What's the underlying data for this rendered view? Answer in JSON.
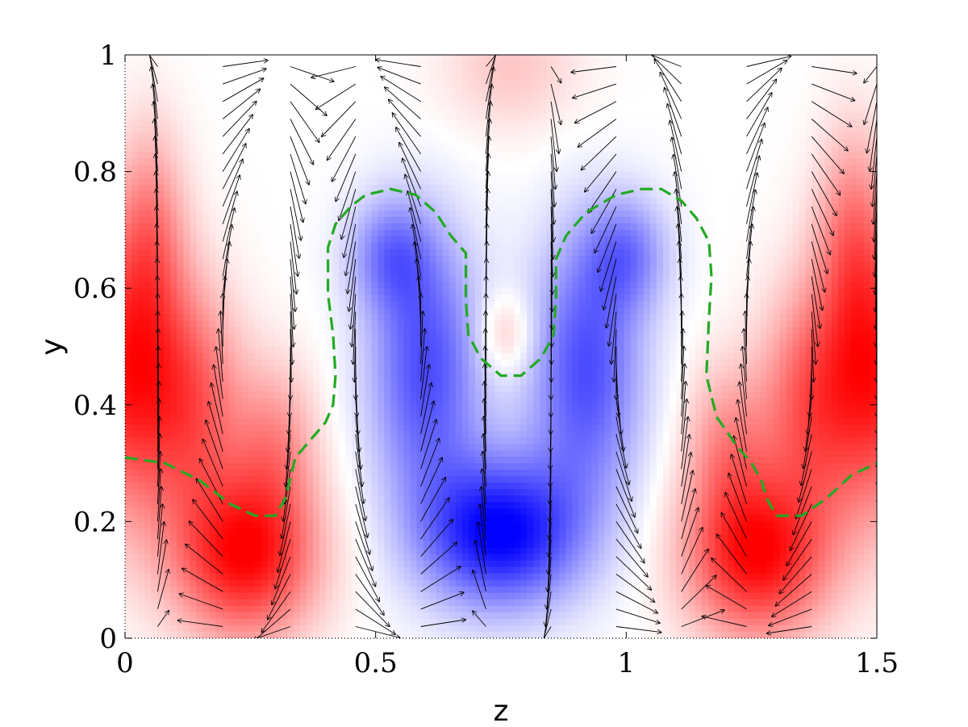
{
  "chart_data": {
    "type": "heatmap",
    "title": "",
    "xlabel": "z",
    "ylabel": "y",
    "xlim": [
      0,
      1.5
    ],
    "ylim": [
      0,
      1
    ],
    "xticks": [
      {
        "value": 0,
        "label": "0"
      },
      {
        "value": 0.5,
        "label": "0.5"
      },
      {
        "value": 1,
        "label": "1"
      },
      {
        "value": 1.5,
        "label": "1.5"
      }
    ],
    "yticks": [
      {
        "value": 0,
        "label": "0"
      },
      {
        "value": 0.2,
        "label": "0.2"
      },
      {
        "value": 0.4,
        "label": "0.4"
      },
      {
        "value": 0.6,
        "label": "0.6"
      },
      {
        "value": 0.8,
        "label": "0.8"
      },
      {
        "value": 1,
        "label": "1"
      }
    ],
    "colormap": {
      "negative": "#0000ff",
      "zero": "#ffffff",
      "positive": "#ff0000"
    },
    "contour": {
      "color": "#22aa22",
      "style": "dashed",
      "points": [
        [
          0,
          0.31
        ],
        [
          0.08,
          0.3
        ],
        [
          0.15,
          0.27
        ],
        [
          0.21,
          0.23
        ],
        [
          0.26,
          0.21
        ],
        [
          0.3,
          0.21
        ],
        [
          0.32,
          0.24
        ],
        [
          0.34,
          0.31
        ],
        [
          0.37,
          0.34
        ],
        [
          0.4,
          0.37
        ],
        [
          0.415,
          0.4
        ],
        [
          0.42,
          0.45
        ],
        [
          0.415,
          0.52
        ],
        [
          0.405,
          0.59
        ],
        [
          0.405,
          0.67
        ],
        [
          0.42,
          0.71
        ],
        [
          0.45,
          0.74
        ],
        [
          0.48,
          0.76
        ],
        [
          0.53,
          0.77
        ],
        [
          0.58,
          0.76
        ],
        [
          0.62,
          0.73
        ],
        [
          0.65,
          0.69
        ],
        [
          0.68,
          0.66
        ],
        [
          0.68,
          0.58
        ],
        [
          0.685,
          0.52
        ],
        [
          0.71,
          0.48
        ],
        [
          0.75,
          0.45
        ],
        [
          0.79,
          0.45
        ],
        [
          0.83,
          0.48
        ],
        [
          0.855,
          0.52
        ],
        [
          0.86,
          0.58
        ],
        [
          0.86,
          0.65
        ],
        [
          0.88,
          0.69
        ],
        [
          0.92,
          0.73
        ],
        [
          0.98,
          0.76
        ],
        [
          1.03,
          0.77
        ],
        [
          1.07,
          0.77
        ],
        [
          1.11,
          0.75
        ],
        [
          1.14,
          0.72
        ],
        [
          1.165,
          0.68
        ],
        [
          1.17,
          0.62
        ],
        [
          1.165,
          0.55
        ],
        [
          1.16,
          0.45
        ],
        [
          1.18,
          0.38
        ],
        [
          1.22,
          0.33
        ],
        [
          1.25,
          0.3
        ],
        [
          1.27,
          0.27
        ],
        [
          1.28,
          0.24
        ],
        [
          1.3,
          0.21
        ],
        [
          1.35,
          0.21
        ],
        [
          1.4,
          0.24
        ],
        [
          1.45,
          0.28
        ],
        [
          1.5,
          0.3
        ]
      ]
    },
    "field_blobs": [
      {
        "z": 0.0,
        "y": 0.45,
        "sz": 0.08,
        "sy": 0.17,
        "amp": 0.85
      },
      {
        "z": 0.05,
        "y": 0.7,
        "sz": 0.05,
        "sy": 0.13,
        "amp": 0.4
      },
      {
        "z": 0.14,
        "y": 0.4,
        "sz": 0.07,
        "sy": 0.14,
        "amp": 0.55
      },
      {
        "z": 0.24,
        "y": 0.14,
        "sz": 0.1,
        "sy": 0.1,
        "amp": 0.95
      },
      {
        "z": 0.3,
        "y": 0.33,
        "sz": 0.06,
        "sy": 0.1,
        "amp": 0.4
      },
      {
        "z": 1.5,
        "y": 0.45,
        "sz": 0.08,
        "sy": 0.17,
        "amp": 0.85
      },
      {
        "z": 1.45,
        "y": 0.7,
        "sz": 0.05,
        "sy": 0.13,
        "amp": 0.4
      },
      {
        "z": 1.36,
        "y": 0.4,
        "sz": 0.07,
        "sy": 0.14,
        "amp": 0.55
      },
      {
        "z": 1.26,
        "y": 0.14,
        "sz": 0.1,
        "sy": 0.1,
        "amp": 0.95
      },
      {
        "z": 1.2,
        "y": 0.33,
        "sz": 0.06,
        "sy": 0.1,
        "amp": 0.4
      },
      {
        "z": 0.75,
        "y": 0.18,
        "sz": 0.11,
        "sy": 0.09,
        "amp": -1.0
      },
      {
        "z": 0.6,
        "y": 0.46,
        "sz": 0.08,
        "sy": 0.16,
        "amp": -0.7
      },
      {
        "z": 0.92,
        "y": 0.46,
        "sz": 0.08,
        "sy": 0.16,
        "amp": -0.7
      },
      {
        "z": 0.53,
        "y": 0.66,
        "sz": 0.06,
        "sy": 0.07,
        "amp": -0.45
      },
      {
        "z": 1.0,
        "y": 0.66,
        "sz": 0.06,
        "sy": 0.07,
        "amp": -0.45
      },
      {
        "z": 0.76,
        "y": 0.52,
        "sz": 0.04,
        "sy": 0.05,
        "amp": 0.3
      },
      {
        "z": 0.77,
        "y": 0.98,
        "sz": 0.1,
        "sy": 0.08,
        "amp": 0.22
      }
    ],
    "vector_columns": [
      0.065,
      0.195,
      0.33,
      0.46,
      0.59,
      0.72,
      0.85,
      0.98,
      1.11,
      1.24,
      1.37,
      1.5
    ],
    "vector_rows": [
      0.02,
      0.05,
      0.08,
      0.11,
      0.14,
      0.17,
      0.2,
      0.23,
      0.26,
      0.29,
      0.32,
      0.35,
      0.38,
      0.41,
      0.44,
      0.47,
      0.5,
      0.53,
      0.56,
      0.59,
      0.62,
      0.65,
      0.68,
      0.71,
      0.74,
      0.77,
      0.8,
      0.83,
      0.86,
      0.89,
      0.92,
      0.95,
      0.98
    ],
    "vector_color": "#000000"
  }
}
